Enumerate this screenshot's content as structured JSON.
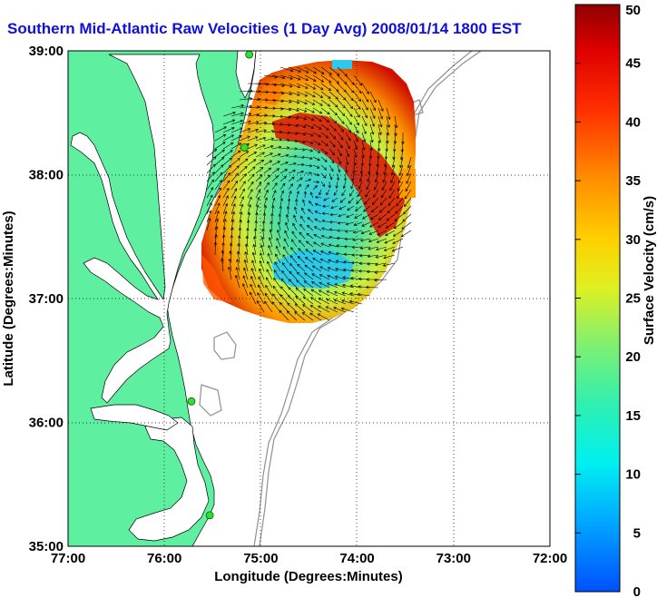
{
  "title": "Southern Mid-Atlantic Raw Velocities (1 Day Avg) 2008/01/14 1800 EST",
  "map": {
    "xlabel": "Longitude (Degrees:Minutes)",
    "ylabel": "Latitude (Degrees:Minutes)",
    "lon_range": [
      -77,
      -72
    ],
    "lat_range": [
      35,
      39
    ],
    "lon_ticks": [
      "77:00",
      "76:00",
      "75:00",
      "74:00",
      "73:00",
      "72:00"
    ],
    "lat_ticks": [
      "39:00",
      "38:00",
      "37:00",
      "36:00",
      "35:00"
    ],
    "land_color": "#5ef0a0",
    "grid": "dotted"
  },
  "colorbar": {
    "label": "Surface Velocity (cm/s)",
    "ticks": [
      "0",
      "5",
      "10",
      "15",
      "20",
      "25",
      "30",
      "35",
      "40",
      "45",
      "50"
    ],
    "range": [
      0,
      50
    ]
  },
  "stations": [
    {
      "lon": -75.12,
      "lat": 38.97
    },
    {
      "lon": -75.17,
      "lat": 38.22
    },
    {
      "lon": -75.72,
      "lat": 36.17
    },
    {
      "lon": -75.53,
      "lat": 35.25
    }
  ]
}
